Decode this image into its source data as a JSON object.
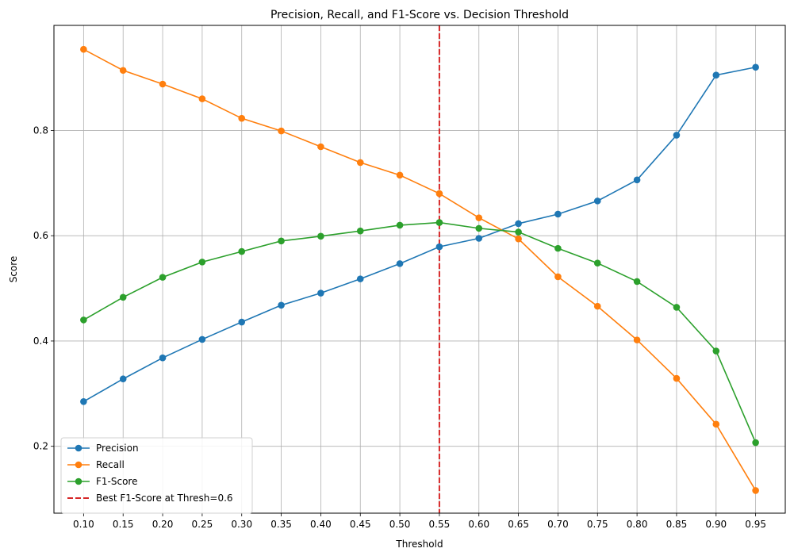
{
  "chart_data": {
    "type": "line",
    "title": "Precision, Recall, and F1-Score vs. Decision Threshold",
    "xlabel": "Threshold",
    "ylabel": "Score",
    "x": [
      0.1,
      0.15,
      0.2,
      0.25,
      0.3,
      0.35,
      0.4,
      0.45,
      0.5,
      0.55,
      0.6,
      0.65,
      0.7,
      0.75,
      0.8,
      0.85,
      0.9,
      0.95
    ],
    "x_tick_labels": [
      "0.10",
      "0.15",
      "0.20",
      "0.25",
      "0.30",
      "0.35",
      "0.40",
      "0.45",
      "0.50",
      "0.55",
      "0.60",
      "0.65",
      "0.70",
      "0.75",
      "0.80",
      "0.85",
      "0.90",
      "0.95"
    ],
    "xlim": [
      0.0625,
      0.9875
    ],
    "ylim": [
      0.073,
      0.9995
    ],
    "y_ticks": [
      0.2,
      0.4,
      0.6,
      0.8
    ],
    "y_tick_labels": [
      "0.2",
      "0.4",
      "0.6",
      "0.8"
    ],
    "grid": true,
    "legend_position": "lower-left",
    "series": [
      {
        "name": "Precision",
        "color": "#1f77b4",
        "marker": "circle",
        "values": [
          0.285,
          0.328,
          0.368,
          0.403,
          0.436,
          0.468,
          0.491,
          0.518,
          0.547,
          0.579,
          0.595,
          0.623,
          0.641,
          0.666,
          0.706,
          0.791,
          0.905,
          0.92
        ]
      },
      {
        "name": "Recall",
        "color": "#ff7f0e",
        "marker": "circle",
        "values": [
          0.954,
          0.914,
          0.888,
          0.86,
          0.823,
          0.799,
          0.769,
          0.739,
          0.715,
          0.68,
          0.634,
          0.594,
          0.522,
          0.466,
          0.402,
          0.329,
          0.242,
          0.116
        ]
      },
      {
        "name": "F1-Score",
        "color": "#2ca02c",
        "marker": "circle",
        "values": [
          0.44,
          0.483,
          0.521,
          0.55,
          0.57,
          0.59,
          0.599,
          0.609,
          0.62,
          0.625,
          0.614,
          0.607,
          0.576,
          0.548,
          0.513,
          0.464,
          0.381,
          0.207
        ]
      }
    ],
    "reference_line": {
      "name": "Best F1-Score at Thresh=0.6",
      "x": 0.55,
      "color": "#d62728",
      "style": "dashed"
    }
  }
}
